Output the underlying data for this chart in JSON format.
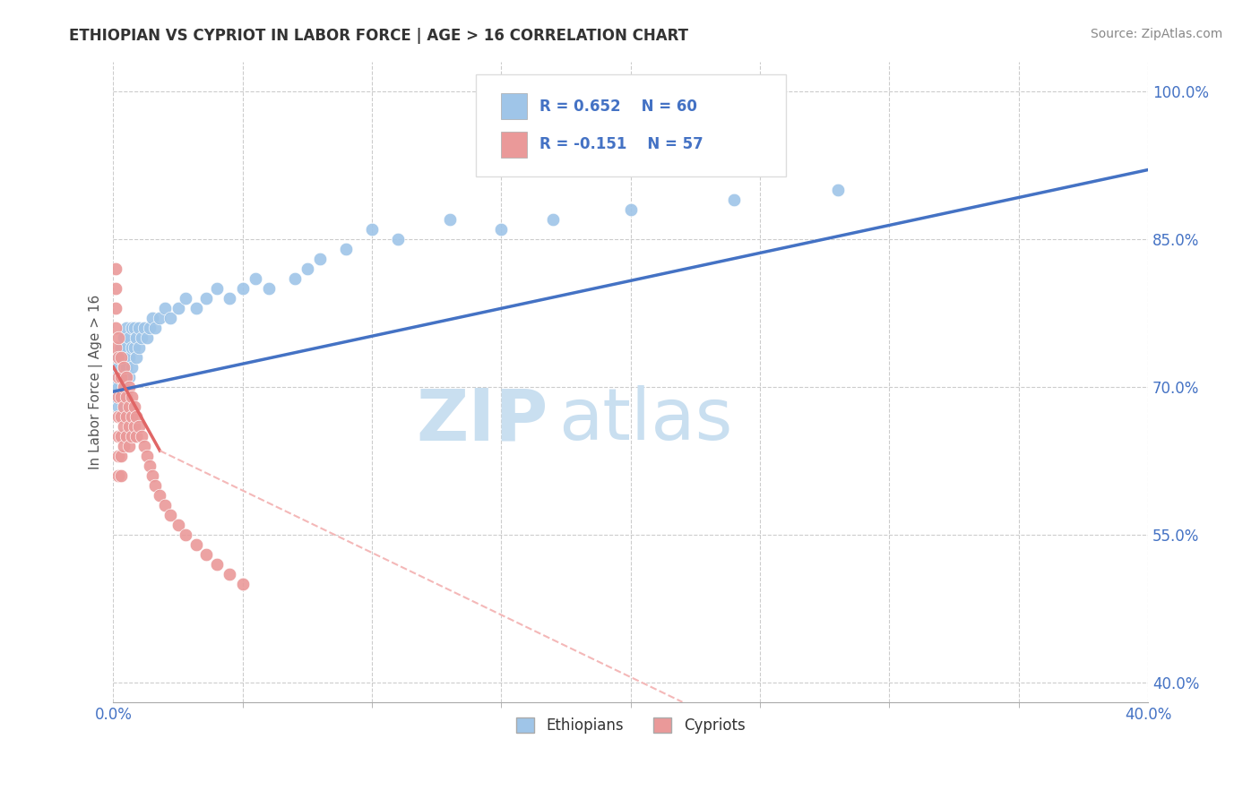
{
  "title": "ETHIOPIAN VS CYPRIOT IN LABOR FORCE | AGE > 16 CORRELATION CHART",
  "source_text": "Source: ZipAtlas.com",
  "ylabel": "In Labor Force | Age > 16",
  "xlim": [
    0.0,
    0.4
  ],
  "ylim": [
    0.38,
    1.03
  ],
  "yticks": [
    0.4,
    0.55,
    0.7,
    0.85,
    1.0
  ],
  "ytick_labels": [
    "40.0%",
    "55.0%",
    "70.0%",
    "85.0%",
    "100.0%"
  ],
  "xtick_left_label": "0.0%",
  "xtick_right_label": "40.0%",
  "legend_r_ethiopian": "R = 0.652",
  "legend_n_ethiopian": "N = 60",
  "legend_r_cypriot": "R = -0.151",
  "legend_n_cypriot": "N = 57",
  "color_ethiopian": "#9fc5e8",
  "color_cypriot": "#ea9999",
  "color_trend_ethiopian": "#4472c4",
  "color_trend_cypriot": "#e06666",
  "color_trend_cypriot_dashed": "#f4b8b8",
  "color_axis_labels": "#4472c4",
  "color_grid": "#cccccc",
  "watermark_zip": "ZIP",
  "watermark_atlas": "atlas",
  "watermark_color": "#c9dff0",
  "ethiopian_x": [
    0.001,
    0.001,
    0.001,
    0.002,
    0.002,
    0.002,
    0.002,
    0.003,
    0.003,
    0.003,
    0.003,
    0.004,
    0.004,
    0.004,
    0.004,
    0.005,
    0.005,
    0.005,
    0.006,
    0.006,
    0.006,
    0.007,
    0.007,
    0.007,
    0.008,
    0.008,
    0.009,
    0.009,
    0.01,
    0.01,
    0.011,
    0.012,
    0.013,
    0.014,
    0.015,
    0.016,
    0.018,
    0.02,
    0.022,
    0.025,
    0.028,
    0.032,
    0.036,
    0.04,
    0.045,
    0.05,
    0.055,
    0.06,
    0.07,
    0.075,
    0.08,
    0.09,
    0.1,
    0.11,
    0.13,
    0.15,
    0.17,
    0.2,
    0.24,
    0.28
  ],
  "ethiopian_y": [
    0.71,
    0.7,
    0.69,
    0.73,
    0.72,
    0.7,
    0.68,
    0.74,
    0.73,
    0.71,
    0.69,
    0.75,
    0.73,
    0.72,
    0.7,
    0.76,
    0.74,
    0.72,
    0.75,
    0.73,
    0.71,
    0.76,
    0.74,
    0.72,
    0.76,
    0.74,
    0.75,
    0.73,
    0.76,
    0.74,
    0.75,
    0.76,
    0.75,
    0.76,
    0.77,
    0.76,
    0.77,
    0.78,
    0.77,
    0.78,
    0.79,
    0.78,
    0.79,
    0.8,
    0.79,
    0.8,
    0.81,
    0.8,
    0.81,
    0.82,
    0.83,
    0.84,
    0.86,
    0.85,
    0.87,
    0.86,
    0.87,
    0.88,
    0.89,
    0.9
  ],
  "cypriot_x": [
    0.001,
    0.001,
    0.001,
    0.001,
    0.001,
    0.002,
    0.002,
    0.002,
    0.002,
    0.002,
    0.002,
    0.002,
    0.002,
    0.003,
    0.003,
    0.003,
    0.003,
    0.003,
    0.003,
    0.003,
    0.004,
    0.004,
    0.004,
    0.004,
    0.004,
    0.005,
    0.005,
    0.005,
    0.005,
    0.006,
    0.006,
    0.006,
    0.006,
    0.007,
    0.007,
    0.007,
    0.008,
    0.008,
    0.009,
    0.009,
    0.01,
    0.011,
    0.012,
    0.013,
    0.014,
    0.015,
    0.016,
    0.018,
    0.02,
    0.022,
    0.025,
    0.028,
    0.032,
    0.036,
    0.04,
    0.045,
    0.05
  ],
  "cypriot_y": [
    0.82,
    0.8,
    0.78,
    0.76,
    0.74,
    0.75,
    0.73,
    0.71,
    0.69,
    0.67,
    0.65,
    0.63,
    0.61,
    0.73,
    0.71,
    0.69,
    0.67,
    0.65,
    0.63,
    0.61,
    0.72,
    0.7,
    0.68,
    0.66,
    0.64,
    0.71,
    0.69,
    0.67,
    0.65,
    0.7,
    0.68,
    0.66,
    0.64,
    0.69,
    0.67,
    0.65,
    0.68,
    0.66,
    0.67,
    0.65,
    0.66,
    0.65,
    0.64,
    0.63,
    0.62,
    0.61,
    0.6,
    0.59,
    0.58,
    0.57,
    0.56,
    0.55,
    0.54,
    0.53,
    0.52,
    0.51,
    0.5
  ],
  "trend_eth_x0": 0.0,
  "trend_eth_x1": 0.4,
  "trend_eth_y0": 0.695,
  "trend_eth_y1": 0.92,
  "trend_cyp_solid_x0": 0.0,
  "trend_cyp_solid_x1": 0.018,
  "trend_cyp_solid_y0": 0.72,
  "trend_cyp_solid_y1": 0.635,
  "trend_cyp_dash_x0": 0.018,
  "trend_cyp_dash_x1": 0.22,
  "trend_cyp_dash_y0": 0.635,
  "trend_cyp_dash_y1": 0.38
}
